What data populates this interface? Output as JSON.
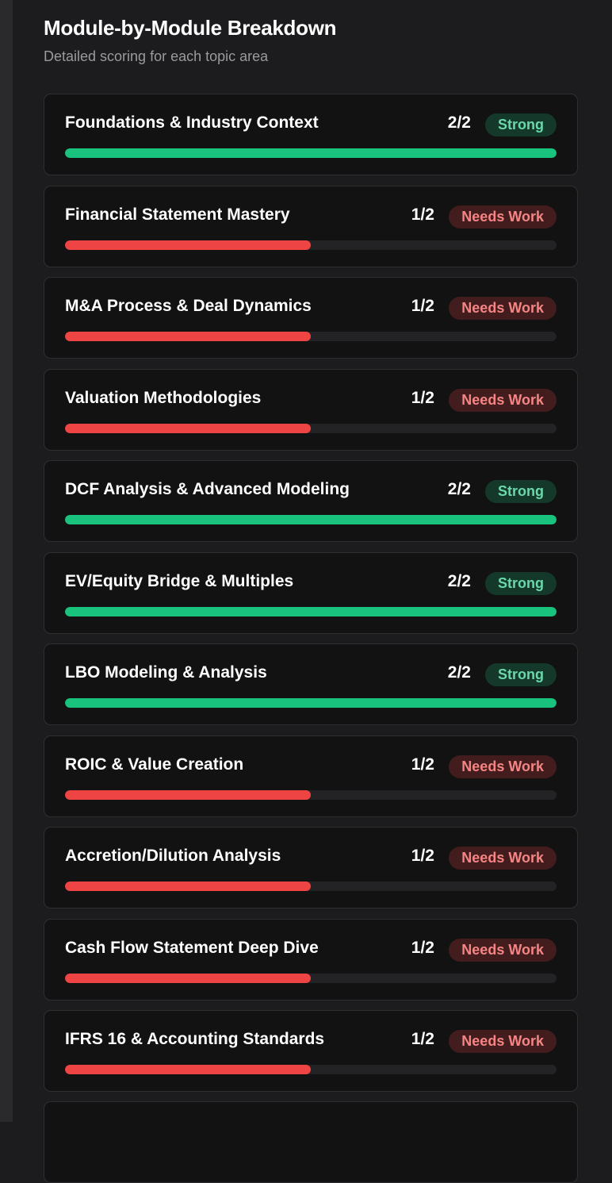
{
  "header": {
    "title": "Module-by-Module Breakdown",
    "subtitle": "Detailed scoring for each topic area"
  },
  "modules": [
    {
      "name": "Foundations & Industry Context",
      "score": "2/2",
      "status": "Strong",
      "progress": 100,
      "color": "#19c37d"
    },
    {
      "name": "Financial Statement Mastery",
      "score": "1/2",
      "status": "Needs Work",
      "progress": 50,
      "color": "#ef4444"
    },
    {
      "name": "M&A Process & Deal Dynamics",
      "score": "1/2",
      "status": "Needs Work",
      "progress": 50,
      "color": "#ef4444"
    },
    {
      "name": "Valuation Methodologies",
      "score": "1/2",
      "status": "Needs Work",
      "progress": 50,
      "color": "#ef4444"
    },
    {
      "name": "DCF Analysis & Advanced Modeling",
      "score": "2/2",
      "status": "Strong",
      "progress": 100,
      "color": "#19c37d"
    },
    {
      "name": "EV/Equity Bridge & Multiples",
      "score": "2/2",
      "status": "Strong",
      "progress": 100,
      "color": "#19c37d"
    },
    {
      "name": "LBO Modeling & Analysis",
      "score": "2/2",
      "status": "Strong",
      "progress": 100,
      "color": "#19c37d"
    },
    {
      "name": "ROIC & Value Creation",
      "score": "1/2",
      "status": "Needs Work",
      "progress": 50,
      "color": "#ef4444"
    },
    {
      "name": "Accretion/Dilution Analysis",
      "score": "1/2",
      "status": "Needs Work",
      "progress": 50,
      "color": "#ef4444"
    },
    {
      "name": "Cash Flow Statement Deep Dive",
      "score": "1/2",
      "status": "Needs Work",
      "progress": 50,
      "color": "#ef4444"
    },
    {
      "name": "IFRS 16 & Accounting Standards",
      "score": "1/2",
      "status": "Needs Work",
      "progress": 50,
      "color": "#ef4444"
    }
  ]
}
